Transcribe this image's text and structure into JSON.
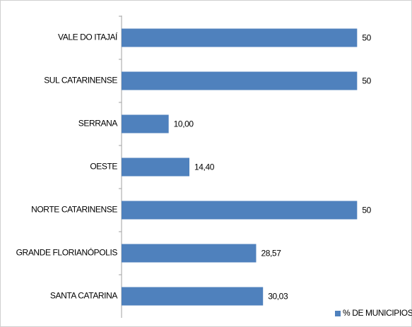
{
  "chart_data": {
    "type": "bar",
    "orientation": "horizontal",
    "categories": [
      "VALE DO ITAJAÍ",
      "SUL CATARINENSE",
      "SERRANA",
      "OESTE",
      "NORTE CATARINENSE",
      "GRANDE FLORIANÓPOLIS",
      "SANTA CATARINA"
    ],
    "series": [
      {
        "name": "% DE MUNICIPIOS",
        "color": "#4f81bd",
        "values": [
          50,
          50,
          10,
          14.4,
          50,
          28.57,
          30.03
        ],
        "value_labels": [
          "50",
          "50",
          "10,00",
          "14,40",
          "50",
          "28,57",
          "30,03"
        ]
      }
    ],
    "xlim": [
      0,
      60
    ],
    "legend": "bottom-right"
  }
}
